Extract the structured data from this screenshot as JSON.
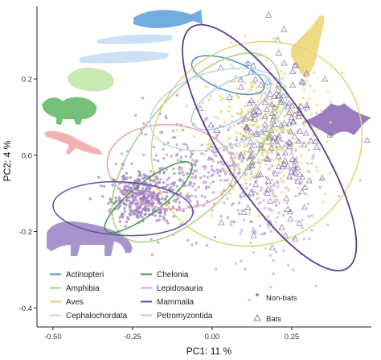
{
  "chart_data": {
    "type": "scatter",
    "xlabel": "PC1:  11 %",
    "ylabel": "PC2:  4 %",
    "xlim": [
      -0.55,
      0.5
    ],
    "ylim": [
      -0.45,
      0.39
    ],
    "x_ticks": [
      -0.5,
      -0.25,
      0.0,
      0.25
    ],
    "x_tick_labels": [
      "-0.50",
      "-0.25",
      "0.00",
      "0.25"
    ],
    "y_ticks": [
      -0.4,
      -0.2,
      0.0,
      0.2
    ],
    "y_tick_labels": [
      "-0.4",
      "-0.2",
      "0.0",
      "0.2"
    ],
    "grid": false,
    "legend_placement": "bottom-left",
    "groups": [
      {
        "name": "Actinopteri",
        "color": "#4e8ec9",
        "ellipse": {
          "cx": 0.05,
          "cy": 0.21,
          "rx": 0.12,
          "ry": 0.04,
          "angle": -20
        }
      },
      {
        "name": "Amphibia",
        "color": "#9fd37f",
        "ellipse": {
          "cx": -0.05,
          "cy": 0.02,
          "rx": 0.36,
          "ry": 0.14,
          "angle": 50
        }
      },
      {
        "name": "Aves",
        "color": "#e3d275",
        "ellipse": {
          "cx": 0.14,
          "cy": 0.03,
          "rx": 0.34,
          "ry": 0.26,
          "angle": 35
        }
      },
      {
        "name": "Cephalochordata",
        "color": "#b9d7ee",
        "ellipse": {
          "cx": 0.02,
          "cy": 0.12,
          "rx": 0.22,
          "ry": 0.1,
          "angle": 15
        }
      },
      {
        "name": "Chelonia",
        "color": "#3f9b48",
        "ellipse": {
          "cx": -0.2,
          "cy": -0.11,
          "rx": 0.17,
          "ry": 0.04,
          "angle": 38
        }
      },
      {
        "name": "Lepidosauria",
        "color": "#e3a7aa",
        "ellipse": {
          "cx": -0.13,
          "cy": -0.03,
          "rx": 0.2,
          "ry": 0.11,
          "angle": -5
        }
      },
      {
        "name": "Mammalia",
        "color": "#6b4e9e",
        "ellipse": {
          "cx": -0.28,
          "cy": -0.14,
          "rx": 0.22,
          "ry": 0.07,
          "angle": -3
        }
      },
      {
        "name": "Petromyzontida",
        "color": "#a8cdea",
        "ellipse": {
          "cx": 0.06,
          "cy": 0.14,
          "rx": 0.14,
          "ry": 0.05,
          "angle": 30
        }
      }
    ],
    "bats_ellipse": {
      "color": "#5a3f8f",
      "cx": 0.18,
      "cy": 0.02,
      "rx": 0.45,
      "ry": 0.12,
      "angle": -57
    },
    "shape_legend": [
      {
        "label": "Non-bats",
        "marker": "dot"
      },
      {
        "label": "Bats",
        "marker": "triangle"
      }
    ],
    "point_clouds": [
      {
        "kind": "dot",
        "color": "#9f7fbf",
        "count": 380,
        "cx": -0.22,
        "cy": -0.11,
        "sx": 0.05,
        "sy": 0.032
      },
      {
        "kind": "dot",
        "color": "#b197cc",
        "count": 260,
        "cx": -0.07,
        "cy": -0.05,
        "sx": 0.1,
        "sy": 0.07
      },
      {
        "kind": "dot",
        "color": "#e6d982",
        "count": 430,
        "cx": 0.16,
        "cy": 0.06,
        "sx": 0.1,
        "sy": 0.09
      },
      {
        "kind": "dot",
        "color": "#c8b0dd",
        "count": 180,
        "cx": 0.18,
        "cy": -0.1,
        "sx": 0.08,
        "sy": 0.1
      },
      {
        "kind": "triangle",
        "color": "#7a62a6",
        "count": 170,
        "cx": 0.2,
        "cy": 0.03,
        "sx": 0.08,
        "sy": 0.12
      }
    ]
  },
  "silhouettes": [
    {
      "name": "salmon",
      "color": "#5b9ed8"
    },
    {
      "name": "lamprey",
      "color": "#c3dcf1"
    },
    {
      "name": "lancelet",
      "color": "#c3dcf1"
    },
    {
      "name": "frog",
      "color": "#bfe6a6"
    },
    {
      "name": "turtle",
      "color": "#5db65f"
    },
    {
      "name": "lizard",
      "color": "#efa5a5"
    },
    {
      "name": "panther",
      "color": "#9a80c4"
    },
    {
      "name": "eagle",
      "color": "#edd471"
    },
    {
      "name": "bat",
      "color": "#8965b5"
    }
  ]
}
